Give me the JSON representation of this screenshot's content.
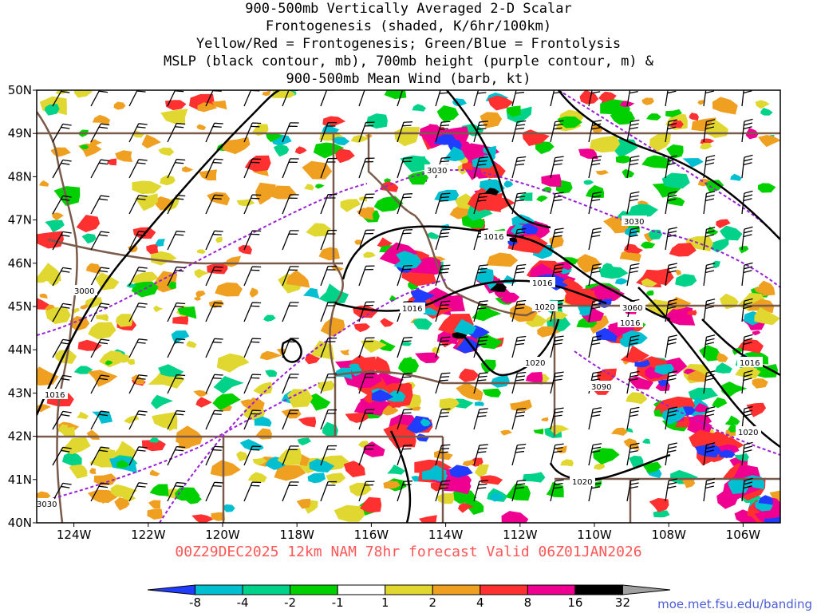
{
  "title_lines": [
    "900-500mb Vertically Averaged 2-D Scalar",
    "Frontogenesis (shaded, K/6hr/100km)",
    "Yellow/Red = Frontogenesis;  Green/Blue = Frontolysis",
    "MSLP (black contour, mb), 700mb height (purple contour, m) &",
    "900-500mb Mean Wind (barb, kt)"
  ],
  "lat_labels": [
    "50N",
    "49N",
    "48N",
    "47N",
    "46N",
    "45N",
    "44N",
    "43N",
    "42N",
    "41N",
    "40N"
  ],
  "lon_labels": [
    "124W",
    "122W",
    "120W",
    "118W",
    "116W",
    "114W",
    "112W",
    "110W",
    "108W",
    "106W"
  ],
  "lat_values": [
    50,
    49,
    48,
    47,
    46,
    45,
    44,
    43,
    42,
    41,
    40
  ],
  "lon_values": [
    -124,
    -122,
    -120,
    -118,
    -116,
    -114,
    -112,
    -110,
    -108,
    -106
  ],
  "map_extent": {
    "lon_min": -125.0,
    "lon_max": -105.0,
    "lat_min": 40,
    "lat_max": 50
  },
  "mslp_labels": [
    "1016",
    "1016",
    "1016",
    "1020",
    "1020",
    "1016",
    "1016",
    "1020",
    "1020",
    "1016"
  ],
  "height_labels": [
    "3030",
    "3030",
    "3000",
    "3060",
    "3090",
    "3030"
  ],
  "footer": "00Z29DEC2025 12km NAM 78hr forecast Valid 06Z01JAN2026",
  "url": "moe.met.fsu.edu/banding",
  "colorbar": {
    "ticks": [
      "-8",
      "-4",
      "-2",
      "-1",
      "1",
      "2",
      "4",
      "8",
      "16",
      "32"
    ],
    "colors": [
      "#1f3cff",
      "#00bfd0",
      "#00d28a",
      "#00d000",
      "#ffffff",
      "#e0d830",
      "#f0a020",
      "#ff3030",
      "#f00090",
      "#000000",
      "#a0a0a0"
    ]
  },
  "colors": {
    "mslp": "#000000",
    "height": "#9a20d8",
    "state_border": "#7a5a4a",
    "barb": "#000000"
  }
}
